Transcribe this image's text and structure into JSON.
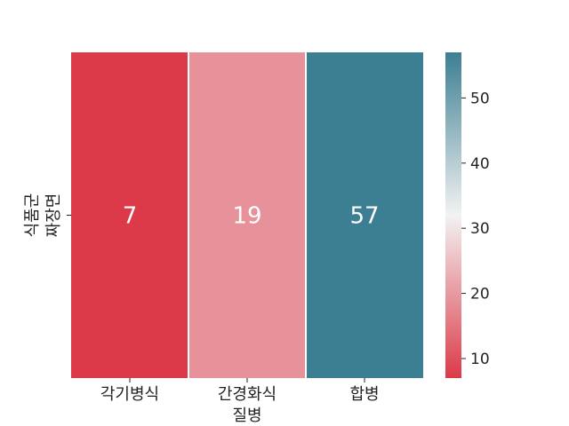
{
  "chart_data": {
    "type": "heatmap",
    "x_categories": [
      [
        "각기병식"
      ],
      [
        "간경화식",
        "질병"
      ],
      [
        "합병"
      ]
    ],
    "y_categories": [
      [
        "식품군",
        "짜장면"
      ]
    ],
    "values": [
      [
        7,
        19,
        57
      ]
    ],
    "cell_labels": [
      "7",
      "19",
      "57"
    ],
    "colorbar": {
      "min": 7,
      "max": 57,
      "ticks": [
        10,
        20,
        30,
        40,
        50
      ],
      "tick_labels": [
        "10",
        "20",
        "30",
        "40",
        "50"
      ],
      "colors": {
        "low": "#dc3a48",
        "mid": "#f2f2f2",
        "high": "#3c7f92"
      }
    }
  }
}
